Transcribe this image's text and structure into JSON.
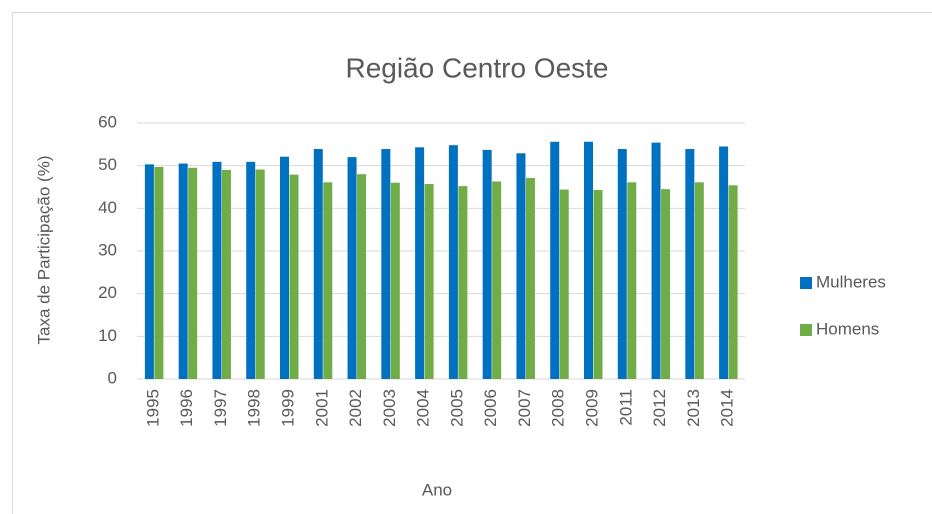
{
  "chart_data": {
    "type": "bar",
    "title": "Região Centro Oeste",
    "x_label": "Ano",
    "y_label": "Taxa de Participação (%)",
    "categories": [
      "1995",
      "1996",
      "1997",
      "1998",
      "1999",
      "2001",
      "2002",
      "2003",
      "2004",
      "2005",
      "2006",
      "2007",
      "2008",
      "2009",
      "2011",
      "2012",
      "2013",
      "2014"
    ],
    "series": [
      {
        "name": "Mulheres",
        "color": "#0070c0",
        "values": [
          50.3,
          50.5,
          50.9,
          50.9,
          52.1,
          53.9,
          52.0,
          53.9,
          54.3,
          54.8,
          53.7,
          52.9,
          55.6,
          55.6,
          53.9,
          55.4,
          53.9,
          54.5
        ]
      },
      {
        "name": "Homens",
        "color": "#70ad47",
        "values": [
          49.7,
          49.5,
          49.0,
          49.1,
          47.9,
          46.1,
          48.0,
          46.0,
          45.7,
          45.2,
          46.3,
          47.1,
          44.4,
          44.3,
          46.1,
          44.5,
          46.1,
          45.4
        ]
      }
    ],
    "ylim": [
      0,
      60
    ],
    "yticks": [
      0,
      10,
      20,
      30,
      40,
      50,
      60
    ],
    "grid": true,
    "legend": "right"
  }
}
